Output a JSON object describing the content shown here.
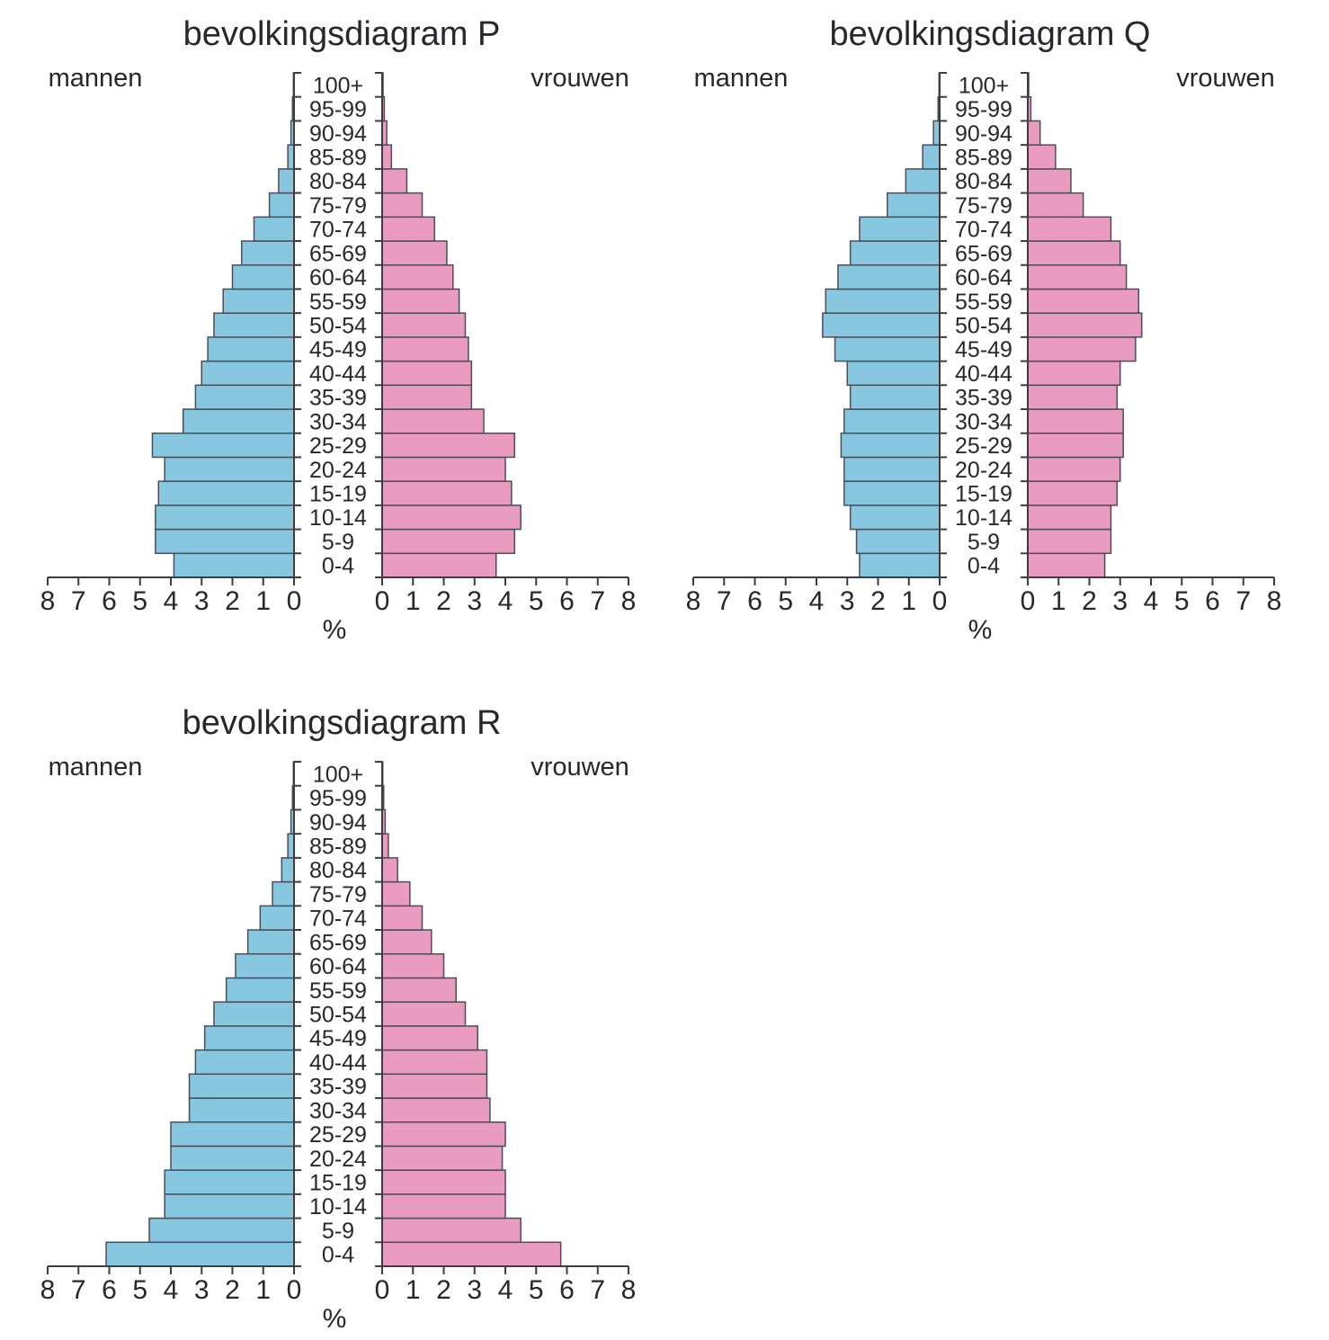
{
  "colors": {
    "male_fill": "#87C8E0",
    "female_fill": "#E99BC0",
    "bar_outline": "#4a4e58",
    "axis_line": "#3a3d42",
    "text": "#26282c"
  },
  "chart_data": [
    {
      "type": "bar",
      "subtype": "population_pyramid",
      "title": "bevolkingsdiagram P",
      "left_side_label": "mannen",
      "right_side_label": "vrouwen",
      "xlabel": "%",
      "xlim": [
        0,
        8
      ],
      "left_axis_tick_labels": [
        "8",
        "7",
        "6",
        "5",
        "4",
        "3",
        "2",
        "1",
        "0"
      ],
      "right_axis_tick_labels": [
        "0",
        "1",
        "2",
        "3",
        "4",
        "5",
        "6",
        "7",
        "8"
      ],
      "age_groups_bottom_to_top": [
        "0-4",
        "5-9",
        "10-14",
        "15-19",
        "20-24",
        "25-29",
        "30-34",
        "35-39",
        "40-44",
        "45-49",
        "50-54",
        "55-59",
        "60-64",
        "65-69",
        "70-74",
        "75-79",
        "80-84",
        "85-89",
        "90-94",
        "95-99",
        "100+"
      ],
      "series": [
        {
          "name": "mannen",
          "values": [
            3.9,
            4.5,
            4.5,
            4.4,
            4.2,
            4.6,
            3.6,
            3.2,
            3.0,
            2.8,
            2.6,
            2.3,
            2.0,
            1.7,
            1.3,
            0.8,
            0.5,
            0.2,
            0.1,
            0.05,
            0.02
          ]
        },
        {
          "name": "vrouwen",
          "values": [
            3.7,
            4.3,
            4.5,
            4.2,
            4.0,
            4.3,
            3.3,
            2.9,
            2.9,
            2.8,
            2.7,
            2.5,
            2.3,
            2.1,
            1.7,
            1.3,
            0.8,
            0.3,
            0.15,
            0.07,
            0.03
          ]
        }
      ]
    },
    {
      "type": "bar",
      "subtype": "population_pyramid",
      "title": "bevolkingsdiagram Q",
      "left_side_label": "mannen",
      "right_side_label": "vrouwen",
      "xlabel": "%",
      "xlim": [
        0,
        8
      ],
      "left_axis_tick_labels": [
        "8",
        "7",
        "6",
        "5",
        "4",
        "3",
        "2",
        "1",
        "0"
      ],
      "right_axis_tick_labels": [
        "0",
        "1",
        "2",
        "3",
        "4",
        "5",
        "6",
        "7",
        "8"
      ],
      "age_groups_bottom_to_top": [
        "0-4",
        "5-9",
        "10-14",
        "15-19",
        "20-24",
        "25-29",
        "30-34",
        "35-39",
        "40-44",
        "45-49",
        "50-54",
        "55-59",
        "60-64",
        "65-69",
        "70-74",
        "75-79",
        "80-84",
        "85-89",
        "90-94",
        "95-99",
        "100+"
      ],
      "series": [
        {
          "name": "mannen",
          "values": [
            2.6,
            2.7,
            2.9,
            3.1,
            3.1,
            3.2,
            3.1,
            2.9,
            3.0,
            3.4,
            3.8,
            3.7,
            3.3,
            2.9,
            2.6,
            1.7,
            1.1,
            0.55,
            0.2,
            0.05,
            0.02
          ]
        },
        {
          "name": "vrouwen",
          "values": [
            2.5,
            2.7,
            2.7,
            2.9,
            3.0,
            3.1,
            3.1,
            2.9,
            3.0,
            3.5,
            3.7,
            3.6,
            3.2,
            3.0,
            2.7,
            1.8,
            1.4,
            0.9,
            0.4,
            0.1,
            0.03
          ]
        }
      ]
    },
    {
      "type": "bar",
      "subtype": "population_pyramid",
      "title": "bevolkingsdiagram R",
      "left_side_label": "mannen",
      "right_side_label": "vrouwen",
      "xlabel": "%",
      "xlim": [
        0,
        8
      ],
      "left_axis_tick_labels": [
        "8",
        "7",
        "6",
        "5",
        "4",
        "3",
        "2",
        "1",
        "0"
      ],
      "right_axis_tick_labels": [
        "0",
        "1",
        "2",
        "3",
        "4",
        "5",
        "6",
        "7",
        "8"
      ],
      "age_groups_bottom_to_top": [
        "0-4",
        "5-9",
        "10-14",
        "15-19",
        "20-24",
        "25-29",
        "30-34",
        "35-39",
        "40-44",
        "45-49",
        "50-54",
        "55-59",
        "60-64",
        "65-69",
        "70-74",
        "75-79",
        "80-84",
        "85-89",
        "90-94",
        "95-99",
        "100+"
      ],
      "series": [
        {
          "name": "mannen",
          "values": [
            6.1,
            4.7,
            4.2,
            4.2,
            4.0,
            4.0,
            3.4,
            3.4,
            3.2,
            2.9,
            2.6,
            2.2,
            1.9,
            1.5,
            1.1,
            0.7,
            0.4,
            0.2,
            0.1,
            0.05,
            0.02
          ]
        },
        {
          "name": "vrouwen",
          "values": [
            5.8,
            4.5,
            4.0,
            4.0,
            3.9,
            4.0,
            3.5,
            3.4,
            3.4,
            3.1,
            2.7,
            2.4,
            2.0,
            1.6,
            1.3,
            0.9,
            0.5,
            0.2,
            0.1,
            0.05,
            0.02
          ]
        }
      ]
    }
  ]
}
